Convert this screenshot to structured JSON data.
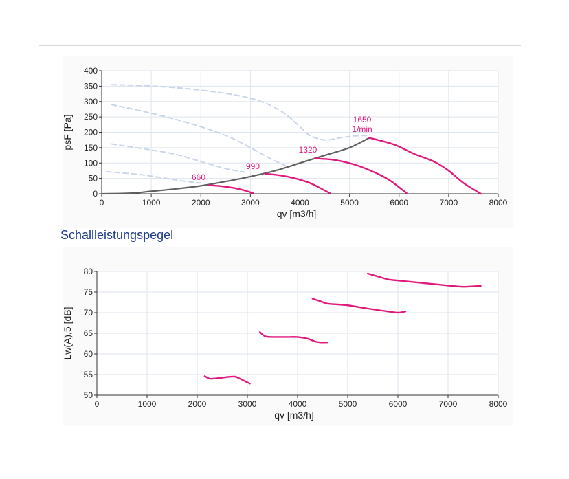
{
  "section_title": "Schallleistungspegel",
  "colors": {
    "magenta": "#e0197d",
    "system": "#606060",
    "dashed": "#c9d6ea",
    "grid": "#dde5ee"
  },
  "chart_data": [
    {
      "type": "line",
      "xlabel": "qv [m3/h]",
      "ylabel": "psF [Pa]",
      "xlim": [
        0,
        8000
      ],
      "ylim": [
        0,
        400
      ],
      "xticks": [
        "0",
        "1000",
        "2000",
        "3000",
        "4000",
        "5000",
        "6000",
        "7000",
        "8000"
      ],
      "yticks": [
        "0",
        "50",
        "100",
        "150",
        "200",
        "250",
        "300",
        "350",
        "400"
      ],
      "grid": true,
      "rpm_labels": [
        "660",
        "990",
        "1320",
        "1650",
        "1/min"
      ],
      "series": [
        {
          "style": "dashed",
          "x": [
            200,
            800,
            1500,
            2200,
            2800,
            3300,
            3700,
            4000,
            4200,
            4500,
            4800,
            5100,
            5400
          ],
          "y": [
            355,
            352,
            345,
            333,
            318,
            295,
            260,
            218,
            190,
            175,
            182,
            188,
            190
          ]
        },
        {
          "style": "dashed",
          "x": [
            200,
            1000,
            1800,
            2500,
            3000,
            3400,
            3700
          ],
          "y": [
            290,
            262,
            228,
            190,
            150,
            115,
            92
          ]
        },
        {
          "style": "dashed",
          "x": [
            200,
            900,
            1500,
            2100,
            2500,
            2900
          ],
          "y": [
            162,
            145,
            128,
            100,
            82,
            70
          ]
        },
        {
          "style": "dashed",
          "x": [
            100,
            800,
            1300,
            1700,
            2000
          ],
          "y": [
            72,
            62,
            50,
            40,
            35
          ]
        },
        {
          "style": "system",
          "x": [
            0,
            600,
            1000,
            1500,
            2000,
            2500,
            3000,
            3500,
            4000,
            4500,
            5000,
            5400
          ],
          "y": [
            0,
            2,
            8,
            16,
            26,
            40,
            56,
            75,
            100,
            125,
            150,
            182
          ]
        },
        {
          "style": "rpm",
          "x": [
            2150,
            2400,
            2700,
            2900,
            3050
          ],
          "y": [
            28,
            25,
            18,
            10,
            2
          ]
        },
        {
          "style": "rpm",
          "x": [
            3300,
            3600,
            3900,
            4200,
            4450,
            4600
          ],
          "y": [
            65,
            60,
            50,
            35,
            15,
            2
          ]
        },
        {
          "style": "rpm",
          "x": [
            4300,
            4700,
            5100,
            5500,
            5800,
            6050,
            6150
          ],
          "y": [
            115,
            110,
            95,
            70,
            45,
            15,
            2
          ]
        },
        {
          "style": "rpm",
          "x": [
            5400,
            5900,
            6300,
            6700,
            7000,
            7300,
            7650
          ],
          "y": [
            182,
            160,
            130,
            105,
            75,
            35,
            0
          ]
        }
      ]
    },
    {
      "type": "line",
      "xlabel": "qv [m3/h]",
      "ylabel": "Lw(A),5 [dB]",
      "xlim": [
        0,
        8000
      ],
      "ylim": [
        50,
        80
      ],
      "xticks": [
        "0",
        "1000",
        "2000",
        "3000",
        "4000",
        "5000",
        "6000",
        "7000",
        "8000"
      ],
      "yticks": [
        "50",
        "55",
        "60",
        "65",
        "70",
        "75",
        "80"
      ],
      "grid": true,
      "series": [
        {
          "style": "rpm",
          "x": [
            2150,
            2250,
            2400,
            2600,
            2750,
            2850,
            3050
          ],
          "y": [
            54.6,
            54.0,
            54.1,
            54.4,
            54.5,
            54.0,
            52.8
          ]
        },
        {
          "style": "rpm",
          "x": [
            3250,
            3350,
            3500,
            3800,
            4000,
            4200,
            4350,
            4450,
            4600
          ],
          "y": [
            65.3,
            64.3,
            64.1,
            64.1,
            64.1,
            63.7,
            63.0,
            62.8,
            62.8
          ]
        },
        {
          "style": "rpm",
          "x": [
            4300,
            4450,
            4600,
            4800,
            5000,
            5400,
            5800,
            6000,
            6150
          ],
          "y": [
            73.4,
            72.8,
            72.2,
            72.0,
            71.8,
            71.0,
            70.3,
            70.0,
            70.3
          ]
        },
        {
          "style": "rpm",
          "x": [
            5400,
            5600,
            5800,
            6000,
            6500,
            7000,
            7300,
            7500,
            7650
          ],
          "y": [
            79.5,
            78.8,
            78.1,
            77.8,
            77.2,
            76.6,
            76.3,
            76.4,
            76.5
          ]
        }
      ]
    }
  ]
}
